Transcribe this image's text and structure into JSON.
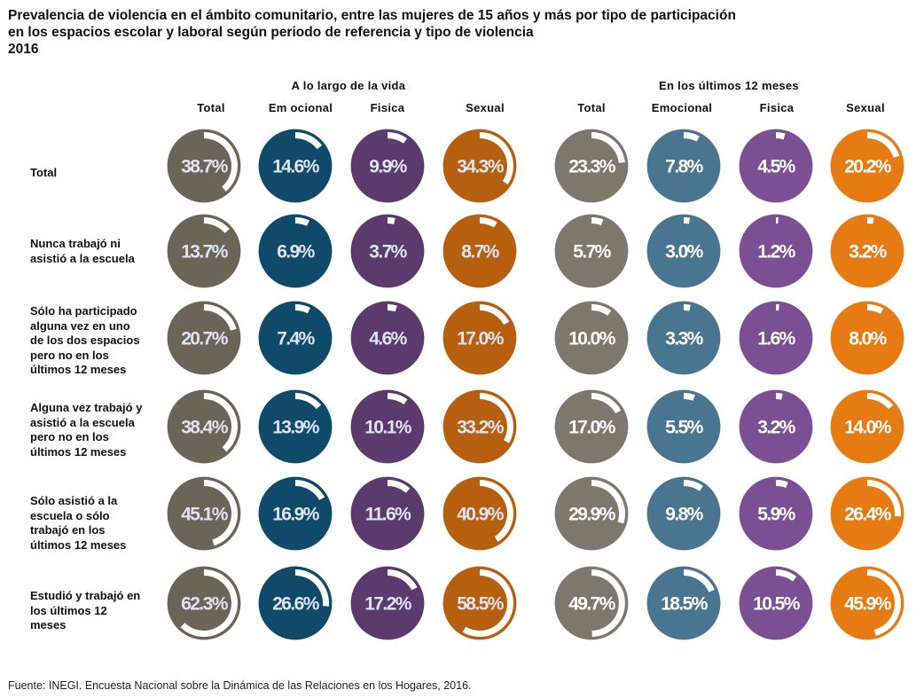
{
  "title": "Prevalencia de violencia en el ámbito comunitario, entre las mujeres de 15 años y más por tipo de participación\nen los espacios escolar y laboral según periodo de referencia y tipo de violencia\n2016",
  "source": "Fuente: INEGI. Encuesta Nacional sobre la Dinámica de las Relaciones en los Hogares, 2016.",
  "chart_data": {
    "type": "table",
    "title": "Prevalencia de violencia en el ámbito comunitario, entre las mujeres de 15 años y más por tipo de participación en los espacios escolar y laboral según periodo de referencia y tipo de violencia, 2016",
    "unit": "%",
    "groups": [
      {
        "name": "A lo largo de la vida",
        "columns": [
          "Total",
          "Em ocional",
          "Fisica",
          "Sexual"
        ],
        "colors": [
          "#6b6558",
          "#0f4a6b",
          "#5b3a6e",
          "#b6600f"
        ],
        "text_color": "#dfe4f3",
        "values": [
          [
            38.7,
            14.6,
            9.9,
            34.3
          ],
          [
            13.7,
            6.9,
            3.7,
            8.7
          ],
          [
            20.7,
            7.4,
            4.6,
            17.0
          ],
          [
            38.4,
            13.9,
            10.1,
            33.2
          ],
          [
            45.1,
            16.9,
            11.6,
            40.9
          ],
          [
            62.3,
            26.6,
            17.2,
            58.5
          ]
        ]
      },
      {
        "name": "En los últimos 12 meses",
        "columns": [
          "Total",
          "Emocional",
          "Fisica",
          "Sexual"
        ],
        "colors": [
          "#7d786b",
          "#4a7590",
          "#7a4f93",
          "#e57b12"
        ],
        "text_color": "#ffffff",
        "values": [
          [
            23.3,
            7.8,
            4.5,
            20.2
          ],
          [
            5.7,
            3.0,
            1.2,
            3.2
          ],
          [
            10.0,
            3.3,
            1.6,
            8.0
          ],
          [
            17.0,
            5.5,
            3.2,
            14.0
          ],
          [
            29.9,
            9.8,
            5.9,
            26.4
          ],
          [
            49.7,
            18.5,
            10.5,
            45.9
          ]
        ]
      }
    ],
    "rows": [
      "Total",
      "Nunca trabajó ni\nasistió a la escuela",
      "Sólo ha participado\nalguna vez en uno\nde los dos espacios\npero no en los\núltimos 12 meses",
      "Alguna vez trabajó y\nasistió a la escuela\npero no en los\núltimos 12 meses",
      "Sólo asistió a la\nescuela o sólo\ntrabajó en los\núltimos 12 meses",
      "Estudió y trabajó en\nlos últimos 12\nmeses"
    ],
    "arc_color": "#ffffff"
  }
}
